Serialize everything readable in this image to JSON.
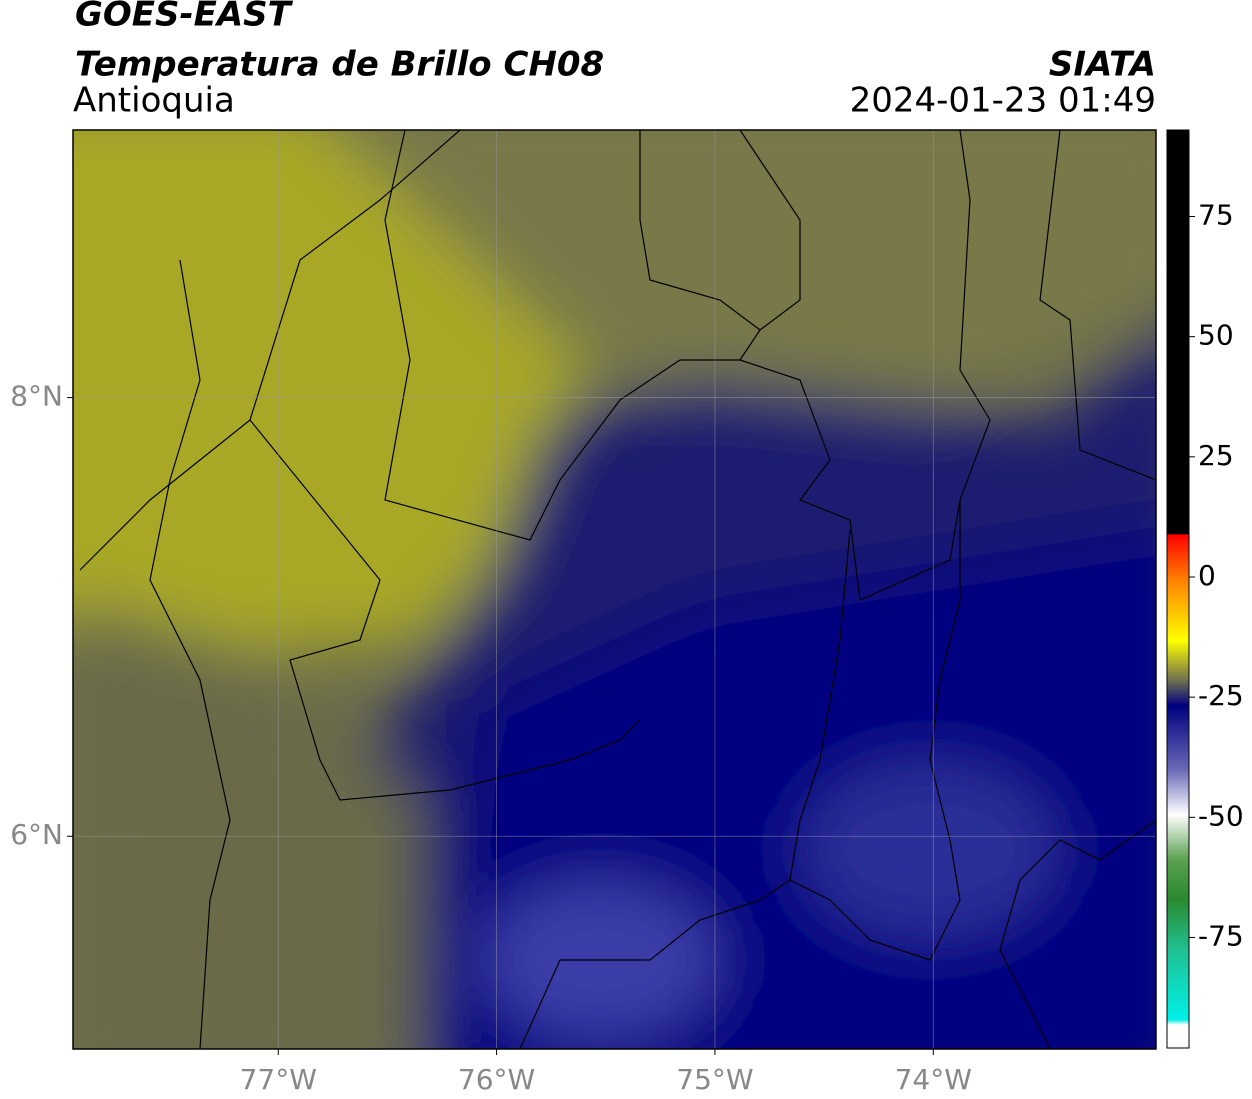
{
  "header": {
    "title": "GOES-EAST",
    "subtitle": "Temperatura de Brillo CH08",
    "region": "Antioquia",
    "source": "SIATA",
    "datetime": "2024-01-23 01:49"
  },
  "map": {
    "lonlim": [
      -77.94,
      -72.98
    ],
    "latlim": [
      5.03,
      9.22
    ],
    "lonticks": [
      {
        "value": -77,
        "label": "77°W"
      },
      {
        "value": -76,
        "label": "76°W"
      },
      {
        "value": -75,
        "label": "75°W"
      },
      {
        "value": -74,
        "label": "74°W"
      }
    ],
    "latticks": [
      {
        "value": 8,
        "label": "8°N"
      },
      {
        "value": 6,
        "label": "6°N"
      }
    ],
    "grid": true
  },
  "colorbar": {
    "lim": [
      -98,
      93
    ],
    "ticks": [
      75,
      50,
      25,
      0,
      -25,
      -50,
      -75
    ]
  }
}
